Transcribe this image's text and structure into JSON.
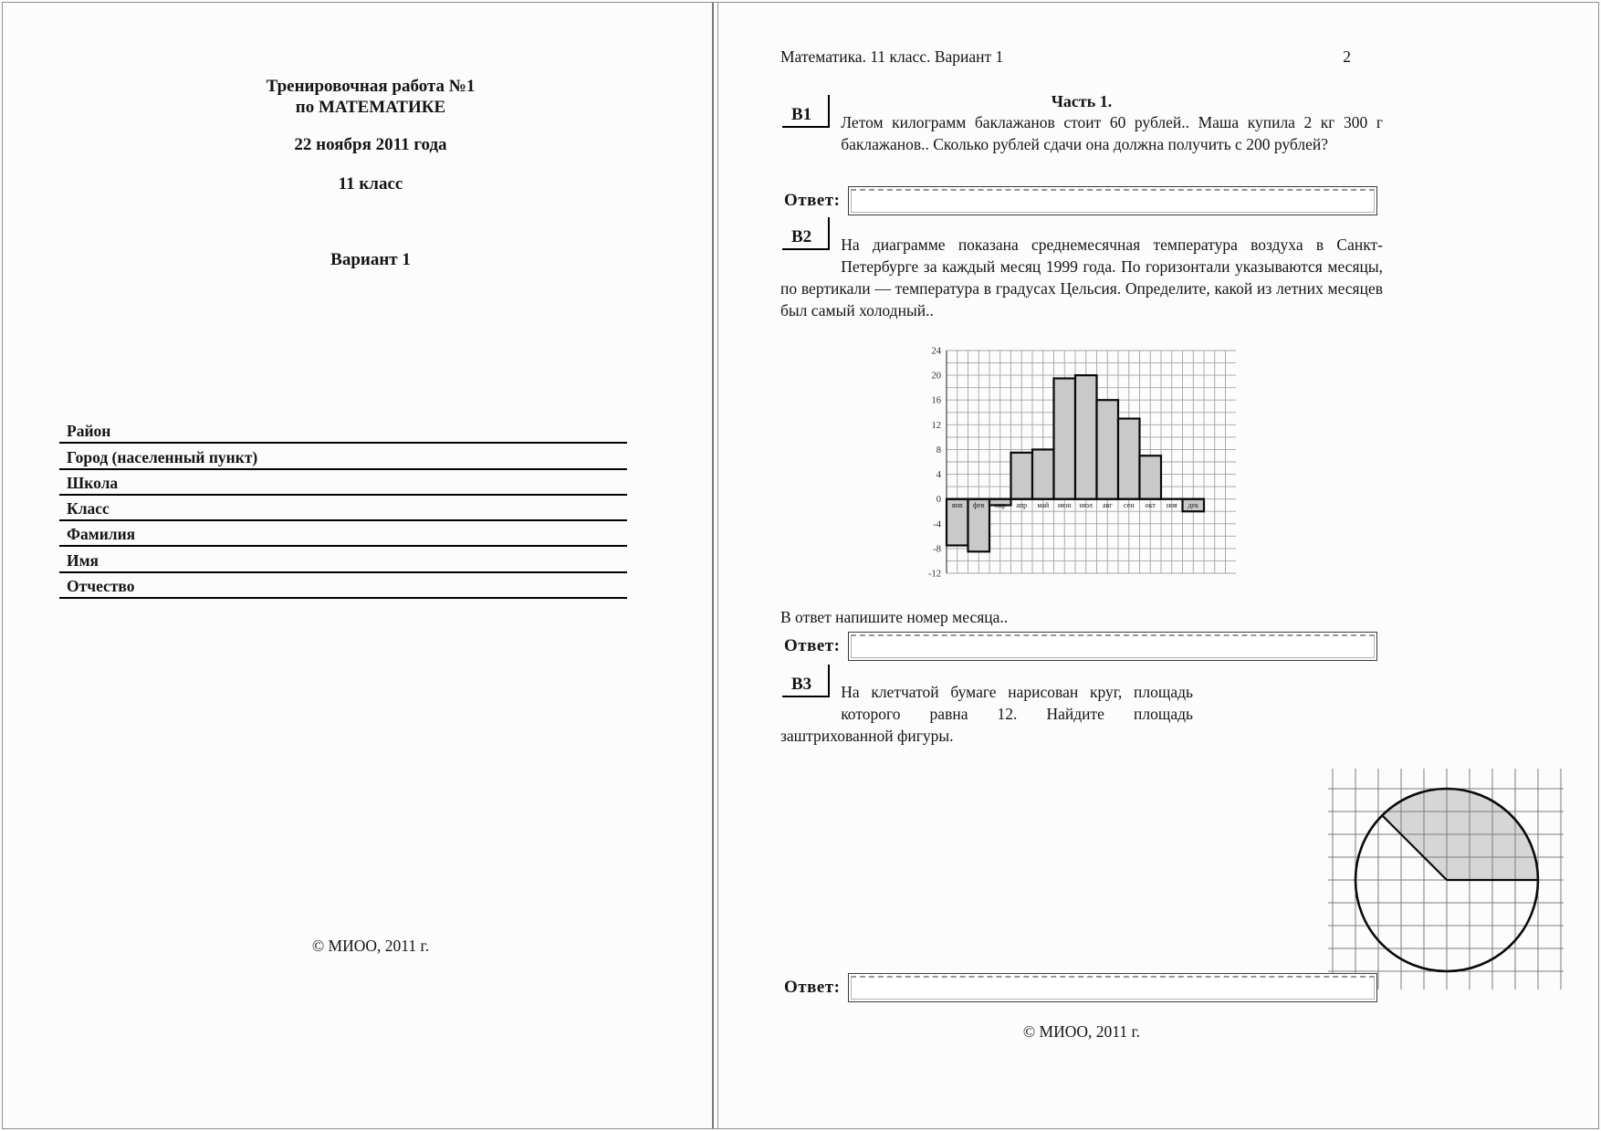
{
  "left_page": {
    "title_line1": "Тренировочная работа №1",
    "title_line2": "по МАТЕМАТИКЕ",
    "date": "22 ноября 2011 года",
    "grade": "11 класс",
    "variant": "Вариант 1",
    "form_fields": [
      "Район",
      "Город (населенный пункт)",
      "Школа",
      "Класс",
      "Фамилия",
      "Имя",
      "Отчество"
    ],
    "footer": "© МИОО, 2011 г."
  },
  "right_page": {
    "header": "Математика. 11 класс. Вариант 1",
    "page_number": "2",
    "section_title": "Часть 1.",
    "answer_label": "Ответ:",
    "b1": {
      "id": "В1",
      "text": "Летом килограмм баклажанов стоит 60 рублей.. Маша купила 2 кг 300 г баклажанов.. Сколько рублей сдачи она должна получить с 200 рублей?"
    },
    "b2": {
      "id": "В2",
      "text": "На диаграмме показана среднемесячная температура воздуха в Санкт-Петербурге за каждый месяц 1999 года. По горизонтали указываются месяцы, по вертикали — температура в градусах Цельсия. Определите, какой из летних месяцев был самый холодный..",
      "note": "В ответ напишите номер месяца.."
    },
    "b3": {
      "id": "В3",
      "text": "На клетчатой бумаге нарисован круг, площадь которого равна 12. Найдите площадь заштрихованной фигуры."
    },
    "footer": "© МИОО, 2011 г."
  },
  "chart_data": {
    "type": "bar",
    "title": "",
    "xlabel": "",
    "ylabel": "",
    "categories": [
      "янв",
      "фев",
      "мар",
      "апр",
      "май",
      "июн",
      "июл",
      "авг",
      "сен",
      "окт",
      "ноя",
      "дек"
    ],
    "values": [
      -7.5,
      -8.5,
      -1,
      7.5,
      8,
      19.5,
      20,
      16,
      13,
      7,
      0,
      -2
    ],
    "ylim": [
      -12,
      24
    ],
    "y_ticks": [
      24,
      20,
      16,
      12,
      8,
      4,
      0,
      -4,
      -8,
      -12
    ],
    "grid": true,
    "legend": false,
    "bar_color": "#c9c9c9",
    "bar_stroke": "#0a0a0a",
    "grid_color": "#a3a3a3"
  },
  "b3_figure": {
    "type": "circle-on-grid",
    "shaded_sector_start_deg": 0,
    "shaded_sector_end_deg": 135,
    "grid_color": "#7d7d7d",
    "shade_color": "#d6d6d6",
    "stroke_color": "#0a0a0a"
  }
}
